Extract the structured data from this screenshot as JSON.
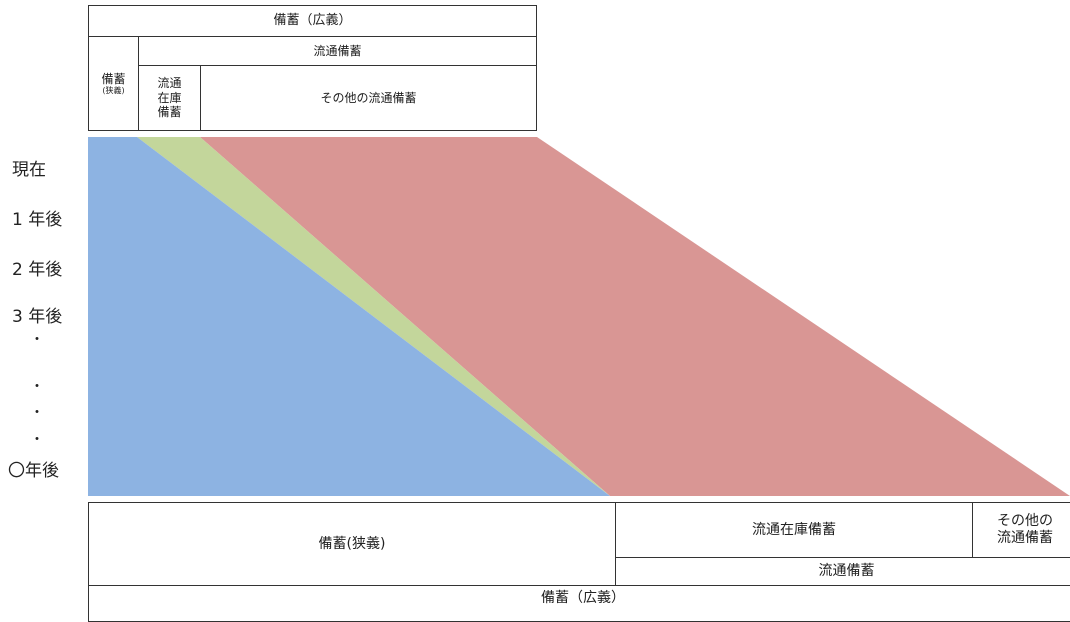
{
  "top_table": {
    "broad_label": "備蓄（広義）",
    "distribution_label": "流通備蓄",
    "narrow_label": "備蓄",
    "narrow_sub": "(狭義)",
    "dist_inventory_label": "流通\n在庫\n備蓄",
    "other_label": "その他の流通備蓄"
  },
  "time_axis": {
    "labels": [
      "現在",
      "1 年後",
      "2 年後",
      "3 年後"
    ],
    "dots": [
      "・",
      "・",
      "・",
      "・"
    ],
    "final_label": "〇年後"
  },
  "bands": {
    "narrow_color": "#8db3e2",
    "dist_inventory_color": "#c3d69b",
    "other_color": "#d99694"
  },
  "bottom_table": {
    "narrow_label": "備蓄(狭義)",
    "dist_inventory_label": "流通在庫備蓄",
    "other_label": "その他の\n流通備蓄",
    "distribution_label": "流通備蓄",
    "broad_label": "備蓄（広義）"
  }
}
